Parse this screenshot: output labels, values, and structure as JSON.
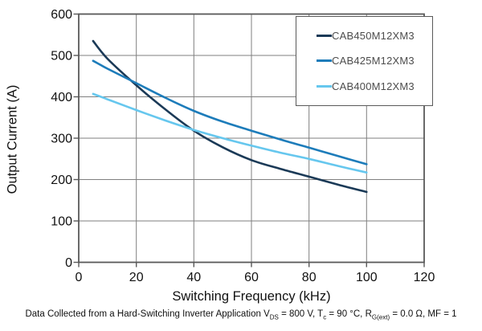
{
  "chart_data": {
    "type": "line",
    "title": "",
    "xlabel": "Switching Frequency (kHz)",
    "ylabel": "Output Current (A)",
    "xlim": [
      0,
      120
    ],
    "ylim": [
      0,
      600
    ],
    "grid": true,
    "legend_position": "top-right-inside",
    "x_ticks": [
      "0",
      "20",
      "40",
      "60",
      "80",
      "100",
      "120"
    ],
    "y_ticks": [
      "0",
      "100",
      "200",
      "300",
      "400",
      "500",
      "600"
    ],
    "x": [
      5,
      10,
      20,
      30,
      40,
      50,
      60,
      70,
      80,
      90,
      100
    ],
    "series": [
      {
        "name": "CAB450M12XM3",
        "color": "#1b3a57",
        "values": [
          535,
          492,
          428,
          370,
          318,
          278,
          247,
          226,
          207,
          188,
          170
        ]
      },
      {
        "name": "CAB425M12XM3",
        "color": "#1d7cba",
        "values": [
          487,
          468,
          433,
          398,
          366,
          340,
          318,
          297,
          277,
          257,
          237
        ]
      },
      {
        "name": "CAB400M12XM3",
        "color": "#66c7ee",
        "values": [
          407,
          394,
          368,
          343,
          320,
          300,
          282,
          265,
          250,
          233,
          217
        ]
      }
    ]
  },
  "caption": {
    "segments": [
      {
        "text": "Data Collected from a Hard-Switching Inverter Application V"
      },
      {
        "sub": "DS"
      },
      {
        "text": " = 800 V, T"
      },
      {
        "sub": "c"
      },
      {
        "text": " = 90 °C, R"
      },
      {
        "sub": "G(ext)"
      },
      {
        "text": " = 0.0 Ω, MF = 1"
      }
    ]
  },
  "colors": {
    "gridline": "#7f7f7f",
    "plot_border": "#595959",
    "legend_text": "#4d4d4d"
  }
}
